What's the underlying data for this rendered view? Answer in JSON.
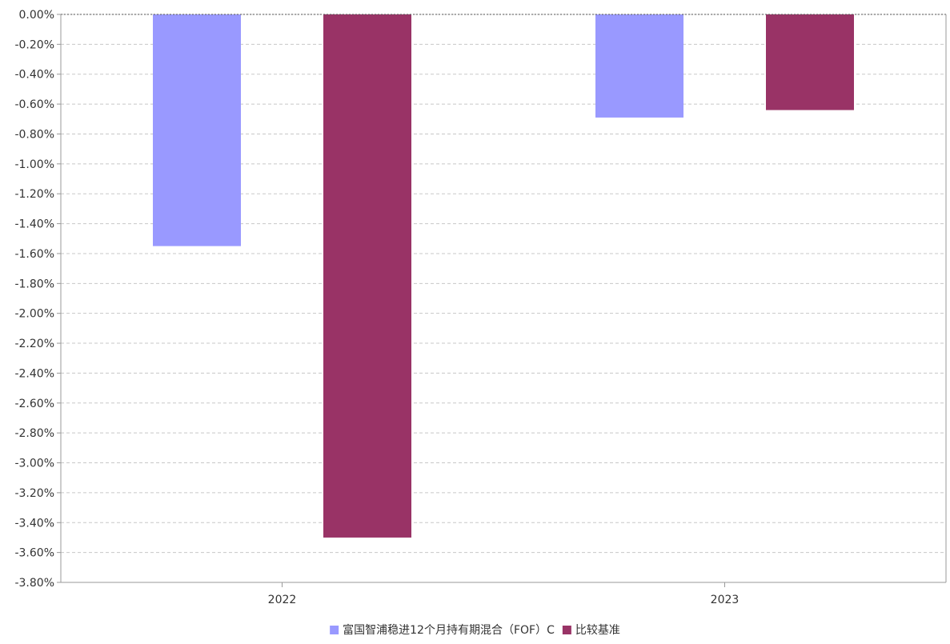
{
  "chart_data": {
    "type": "bar",
    "categories": [
      "2022",
      "2023"
    ],
    "series": [
      {
        "name": "富国智浦稳进12个月持有期混合（FOF）C",
        "values": [
          -1.55,
          -0.69
        ],
        "color": "#9999ff"
      },
      {
        "name": "比较基准",
        "values": [
          -3.5,
          -0.64
        ],
        "color": "#993366"
      }
    ],
    "ylim": [
      -3.8,
      0
    ],
    "y_tick_step": 0.2,
    "y_tick_format": "percent-2dp",
    "grid": true,
    "legend_position": "bottom-center",
    "xlabel": "",
    "ylabel": ""
  }
}
